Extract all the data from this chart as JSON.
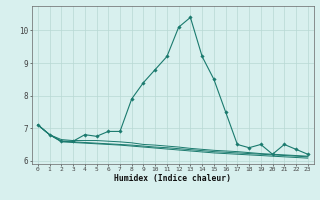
{
  "xlabel": "Humidex (Indice chaleur)",
  "x_values": [
    0,
    1,
    2,
    3,
    4,
    5,
    6,
    7,
    8,
    9,
    10,
    11,
    12,
    13,
    14,
    15,
    16,
    17,
    18,
    19,
    20,
    21,
    22,
    23
  ],
  "line1": [
    7.1,
    6.8,
    6.6,
    6.6,
    6.8,
    6.75,
    6.9,
    6.9,
    7.9,
    8.4,
    8.8,
    9.2,
    10.1,
    10.4,
    9.2,
    8.5,
    7.5,
    6.5,
    6.4,
    6.5,
    6.2,
    6.5,
    6.35,
    6.2
  ],
  "line2": [
    7.1,
    6.8,
    6.65,
    6.62,
    6.62,
    6.62,
    6.6,
    6.58,
    6.55,
    6.5,
    6.48,
    6.45,
    6.42,
    6.38,
    6.35,
    6.32,
    6.3,
    6.28,
    6.25,
    6.22,
    6.2,
    6.18,
    6.16,
    6.14
  ],
  "line3": [
    7.1,
    6.8,
    6.6,
    6.58,
    6.56,
    6.54,
    6.52,
    6.5,
    6.48,
    6.45,
    6.42,
    6.4,
    6.37,
    6.34,
    6.31,
    6.28,
    6.26,
    6.24,
    6.22,
    6.2,
    6.18,
    6.16,
    6.14,
    6.12
  ],
  "line4": [
    7.1,
    6.8,
    6.58,
    6.56,
    6.54,
    6.52,
    6.5,
    6.48,
    6.45,
    6.42,
    6.39,
    6.36,
    6.33,
    6.3,
    6.27,
    6.24,
    6.22,
    6.2,
    6.18,
    6.16,
    6.14,
    6.12,
    6.1,
    6.08
  ],
  "line_color": "#1a7a6e",
  "bg_color": "#d8f0ee",
  "grid_color": "#b8d8d4",
  "ylim": [
    5.9,
    10.75
  ],
  "yticks": [
    6,
    7,
    8,
    9,
    10
  ],
  "xticks": [
    0,
    1,
    2,
    3,
    4,
    5,
    6,
    7,
    8,
    9,
    10,
    11,
    12,
    13,
    14,
    15,
    16,
    17,
    18,
    19,
    20,
    21,
    22,
    23
  ]
}
